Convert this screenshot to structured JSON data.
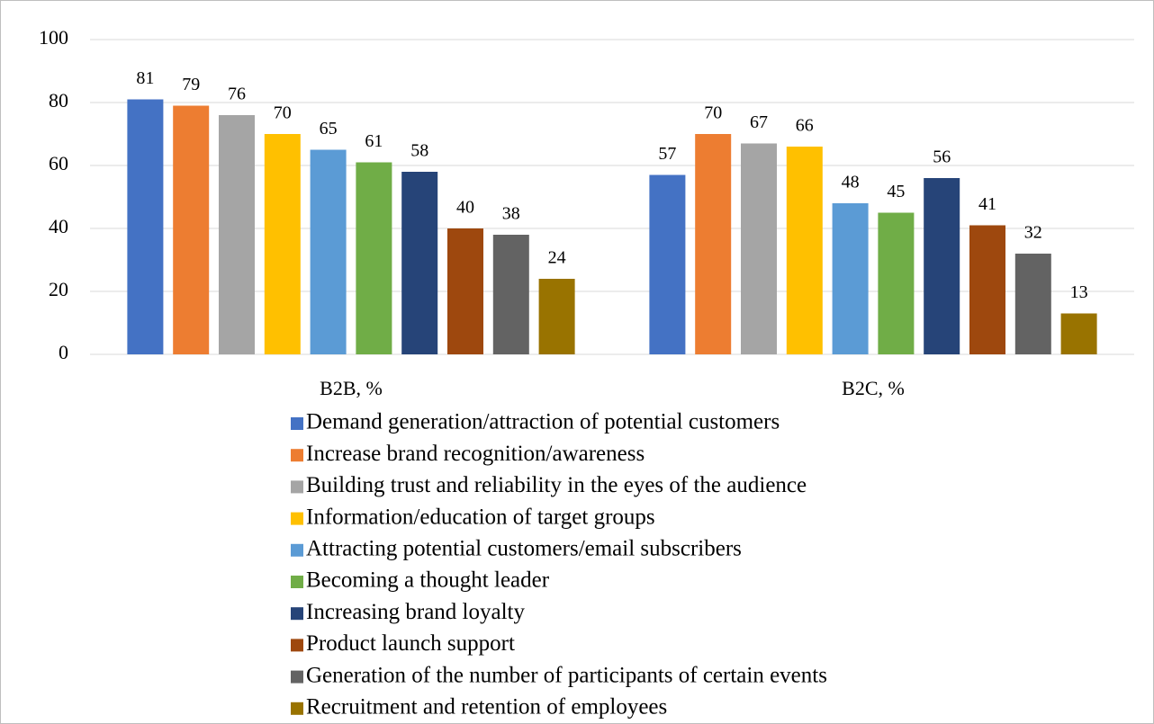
{
  "chart_data": {
    "type": "bar",
    "categories": [
      "B2B, %",
      "B2C, %"
    ],
    "series": [
      {
        "name": "Demand generation/attraction of potential customers",
        "color": "#4472c4",
        "values": [
          81,
          57
        ]
      },
      {
        "name": "Increase brand recognition/awareness",
        "color": "#ed7d31",
        "values": [
          79,
          70
        ]
      },
      {
        "name": "Building trust and reliability in the eyes of the audience",
        "color": "#a5a5a5",
        "values": [
          76,
          67
        ]
      },
      {
        "name": "Information/education of target groups",
        "color": "#ffc000",
        "values": [
          70,
          66
        ]
      },
      {
        "name": "Attracting potential customers/email subscribers",
        "color": "#5b9bd5",
        "values": [
          65,
          48
        ]
      },
      {
        "name": "Becoming a thought leader",
        "color": "#70ad47",
        "values": [
          61,
          45
        ]
      },
      {
        "name": "Increasing brand loyalty",
        "color": "#264478",
        "values": [
          58,
          56
        ]
      },
      {
        "name": "Product launch support",
        "color": "#9e480e",
        "values": [
          40,
          41
        ]
      },
      {
        "name": "Generation of the number of participants of certain events",
        "color": "#636363",
        "values": [
          38,
          32
        ]
      },
      {
        "name": "Recruitment and retention of employees",
        "color": "#997300",
        "values": [
          24,
          13
        ]
      }
    ],
    "ylim": [
      0,
      100
    ],
    "yticks": [
      0,
      20,
      40,
      60,
      80,
      100
    ],
    "grid": true,
    "legend": "bottom"
  }
}
